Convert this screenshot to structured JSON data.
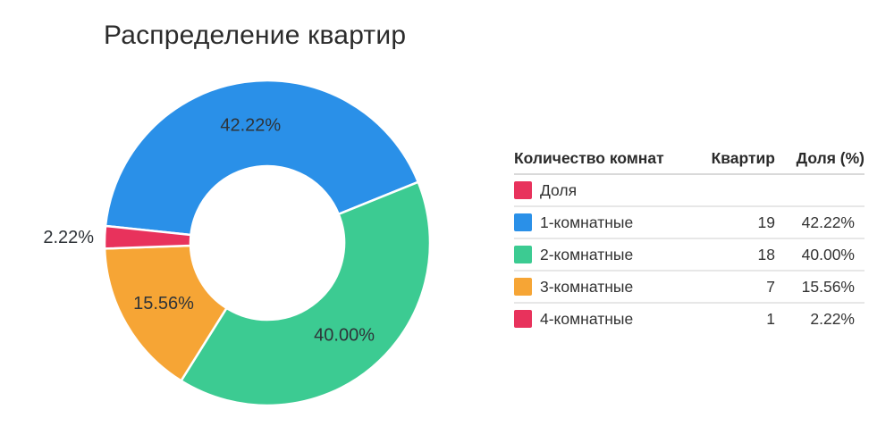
{
  "title": "Распределение квартир",
  "chart_data": {
    "type": "pie",
    "subtype": "donut",
    "title": "Распределение квартир",
    "series_name": "Доля",
    "categories": [
      "1-комнатные",
      "2-комнатные",
      "3-комнатные",
      "4-комнатные"
    ],
    "values": [
      19,
      18,
      7,
      1
    ],
    "shares_pct": [
      42.22,
      40.0,
      15.56,
      2.22
    ],
    "slice_labels": [
      "42.22%",
      "40.00%",
      "15.56%",
      "2.22%"
    ],
    "colors": [
      "#2a90e8",
      "#3ccb92",
      "#f6a535",
      "#e8325c"
    ],
    "start_angle_cw_from_top": 276,
    "legend_position": "right-table",
    "label_color": "#2e3338",
    "background": "#ffffff"
  },
  "table": {
    "headers": [
      "Количество комнат",
      "Квартир",
      "Доля (%)"
    ],
    "series_row": {
      "label": "Доля",
      "color": "#e8325c",
      "count": "",
      "share": ""
    },
    "rows": [
      {
        "label": "1-комнатные",
        "color": "#2a90e8",
        "count": "19",
        "share": "42.22%"
      },
      {
        "label": "2-комнатные",
        "color": "#3ccb92",
        "count": "18",
        "share": "40.00%"
      },
      {
        "label": "3-комнатные",
        "color": "#f6a535",
        "count": "7",
        "share": "15.56%"
      },
      {
        "label": "4-комнатные",
        "color": "#e8325c",
        "count": "1",
        "share": "2.22%"
      }
    ]
  }
}
